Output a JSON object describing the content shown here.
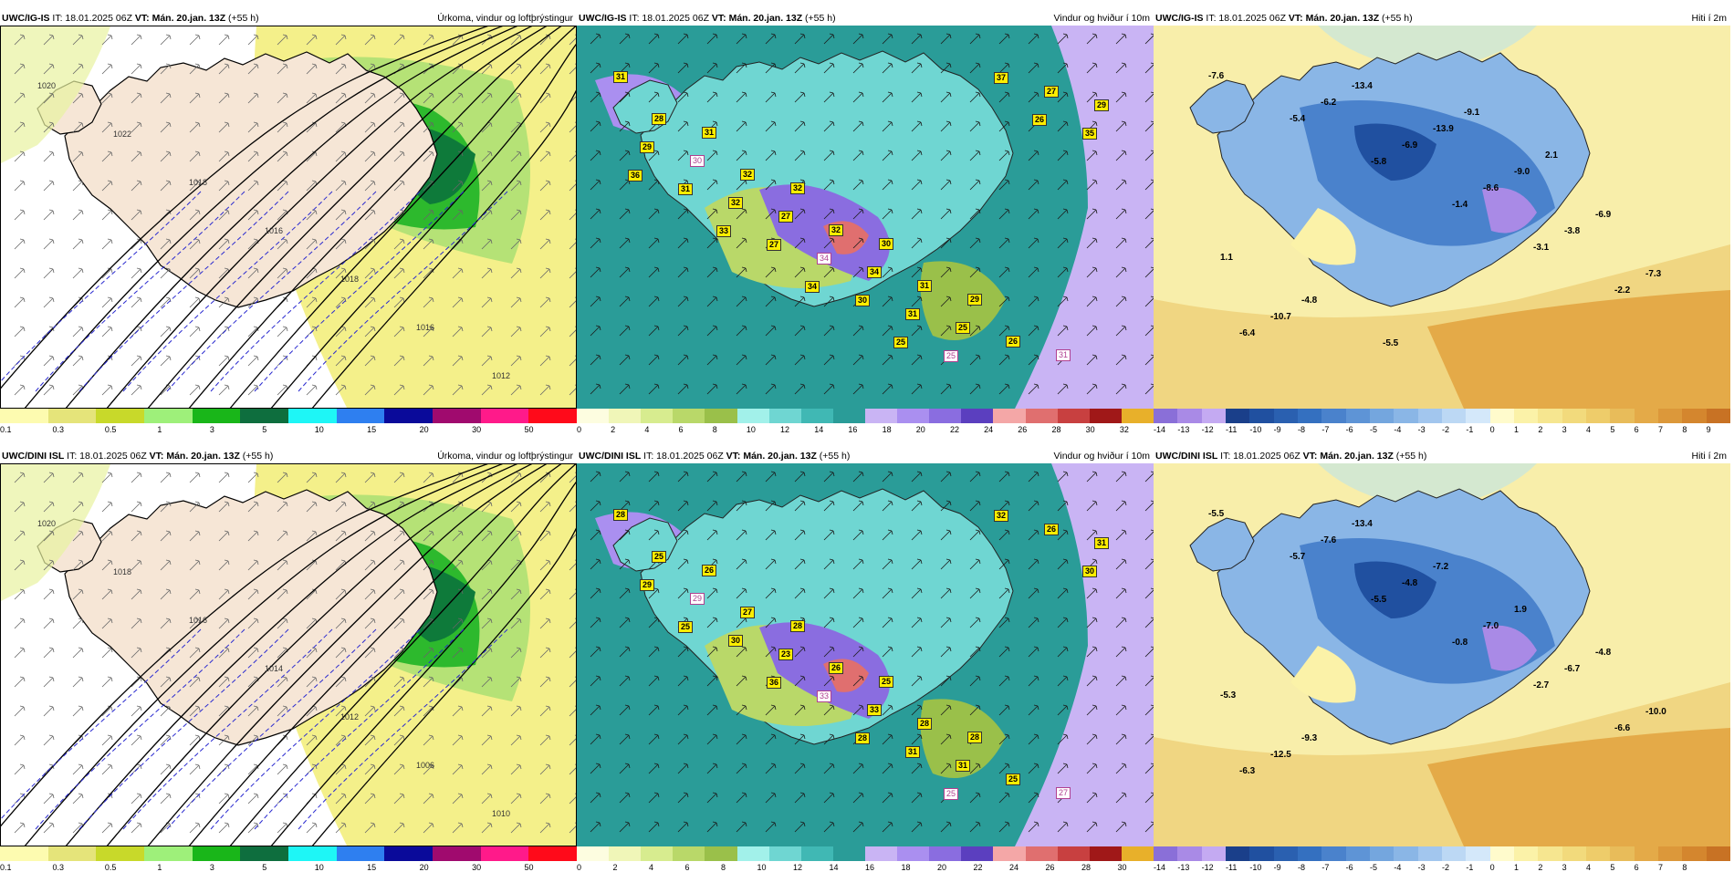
{
  "rows": [
    {
      "model": "UWC/IG-IS",
      "panels": [
        {
          "kind": "precip",
          "left_rest": "IT: 18.01.2025 06Z",
          "vt_label": "VT:",
          "vt_value": "Mán. 20.jan. 13Z",
          "lead": "(+55 h)",
          "title": "Úrkoma, vindur og loftþrýstingur"
        },
        {
          "kind": "wind",
          "left_rest": "IT: 18.01.2025 06Z",
          "vt_label": "VT:",
          "vt_value": "Mán. 20.jan. 13Z",
          "lead": "(+55 h)",
          "title": "Vindur og hviður í 10m"
        },
        {
          "kind": "temp",
          "left_rest": "IT: 18.01.2025 06Z",
          "vt_label": "VT:",
          "vt_value": "Mán. 20.jan. 13Z",
          "lead": "(+55 h)",
          "title": "Hiti í 2m"
        }
      ],
      "temp_labels": [
        "-7.6",
        "-5.4",
        "-5.8",
        "-1.4",
        "-3.1",
        "-2.2",
        "-6.4",
        "-6.2",
        "-6.9",
        "-8.6",
        "-3.8",
        "-7.3",
        "-10.7",
        "-13.4",
        "-13.9",
        "-9.0",
        "-6.9",
        "1.1",
        "-4.8",
        "-5.5",
        "-9.1",
        "2.1"
      ],
      "gust_labels": [
        "31",
        "31",
        "32",
        "30",
        "29",
        "31",
        "28",
        "32",
        "32",
        "31",
        "26",
        "29",
        "30",
        "27",
        "34",
        "25",
        "27",
        "29",
        "32",
        "34",
        "31",
        "37",
        "35",
        "31",
        "27",
        "30",
        "25",
        "26",
        "36",
        "33",
        "34",
        "25"
      ],
      "pressure_labels": [
        "1020",
        "1022",
        "1018",
        "1016",
        "1018",
        "1016",
        "1012"
      ]
    },
    {
      "model": "UWC/DINI ISL",
      "panels": [
        {
          "kind": "precip",
          "left_rest": "IT: 18.01.2025 06Z",
          "vt_label": "VT:",
          "vt_value": "Mán. 20.jan. 13Z",
          "lead": "(+55 h)",
          "title": "Úrkoma, vindur og loftþrýstingur"
        },
        {
          "kind": "wind",
          "left_rest": "IT: 18.01.2025 06Z",
          "vt_label": "VT:",
          "vt_value": "Mán. 20.jan. 13Z",
          "lead": "(+55 h)",
          "title": "Vindur og hviður í 10m"
        },
        {
          "kind": "temp",
          "left_rest": "IT: 18.01.2025 06Z",
          "vt_label": "VT:",
          "vt_value": "Mán. 20.jan. 13Z",
          "lead": "(+55 h)",
          "title": "Hiti í 2m"
        }
      ],
      "temp_labels": [
        "-5.5",
        "-5.7",
        "-5.5",
        "-0.8",
        "-2.7",
        "-6.6",
        "-6.3",
        "-7.6",
        "-4.8",
        "-7.0",
        "-6.7",
        "-10.0",
        "-12.5",
        "-13.4",
        "-7.2",
        "1.9",
        "-4.8",
        "-5.3",
        "-9.3"
      ],
      "gust_labels": [
        "28",
        "26",
        "28",
        "25",
        "28",
        "27",
        "25",
        "27",
        "26",
        "28",
        "25",
        "31",
        "29",
        "23",
        "33",
        "31",
        "26",
        "29",
        "30",
        "33",
        "31",
        "32",
        "30",
        "25",
        "36",
        "28",
        "25"
      ],
      "pressure_labels": [
        "1020",
        "1018",
        "1016",
        "1014",
        "1012",
        "1006",
        "1010"
      ]
    }
  ],
  "legends": {
    "precip": {
      "ticks": [
        "0.1",
        "0.3",
        "0.5",
        "1",
        "3",
        "5",
        "10",
        "15",
        "20",
        "30",
        "50"
      ],
      "colors": [
        "#fdfbb0",
        "#e5e47a",
        "#c8d92a",
        "#9ef07a",
        "#19b619",
        "#0e6e3e",
        "#1ef6f6",
        "#2e7ff0",
        "#0a0a9a",
        "#a00a6e",
        "#ff1a8a",
        "#ff0a1a"
      ]
    },
    "wind": {
      "ticks": [
        "0",
        "2",
        "4",
        "6",
        "8",
        "10",
        "12",
        "14",
        "16",
        "18",
        "20",
        "22",
        "24",
        "26",
        "28",
        "30",
        "32"
      ],
      "ticks_row2": [
        "0",
        "2",
        "4",
        "6",
        "8",
        "10",
        "12",
        "14",
        "16",
        "18",
        "20",
        "22",
        "24",
        "26",
        "28",
        "30"
      ],
      "colors": [
        "#fdfde0",
        "#f0f6b8",
        "#d7ec8f",
        "#b9d869",
        "#9ac04a",
        "#a2f1ea",
        "#6fd6d2",
        "#40b8b4",
        "#2a9c98",
        "#c9b4f4",
        "#aa8ff0",
        "#8a6de0",
        "#5b3fbf",
        "#f4a7a7",
        "#e06f6f",
        "#c84040",
        "#a01818",
        "#e8b02a"
      ]
    },
    "temp": {
      "ticks": [
        "-14",
        "-13",
        "-12",
        "-11",
        "-10",
        "-9",
        "-8",
        "-7",
        "-6",
        "-5",
        "-4",
        "-3",
        "-2",
        "-1",
        "0",
        "1",
        "2",
        "3",
        "4",
        "5",
        "6",
        "7",
        "8",
        "9"
      ],
      "ticks_row2": [
        "-14",
        "-13",
        "-12",
        "-11",
        "-10",
        "-9",
        "-8",
        "-7",
        "-6",
        "-5",
        "-4",
        "-3",
        "-2",
        "-1",
        "0",
        "1",
        "2",
        "3",
        "4",
        "5",
        "6",
        "7",
        "8"
      ],
      "colors": [
        "#8a6fd8",
        "#a98ae6",
        "#c4aaf2",
        "#1a3f8a",
        "#2050a0",
        "#2a60b0",
        "#3470c0",
        "#4a82cc",
        "#5e94d6",
        "#74a6de",
        "#8ab6e6",
        "#a2c6ee",
        "#bcd8f4",
        "#d4e8fa",
        "#fffbcc",
        "#fbf2a8",
        "#f6e690",
        "#f2da7c",
        "#eecc6a",
        "#e8bc5a",
        "#e4aa48",
        "#dc983a",
        "#d4862e",
        "#c87224"
      ]
    }
  }
}
